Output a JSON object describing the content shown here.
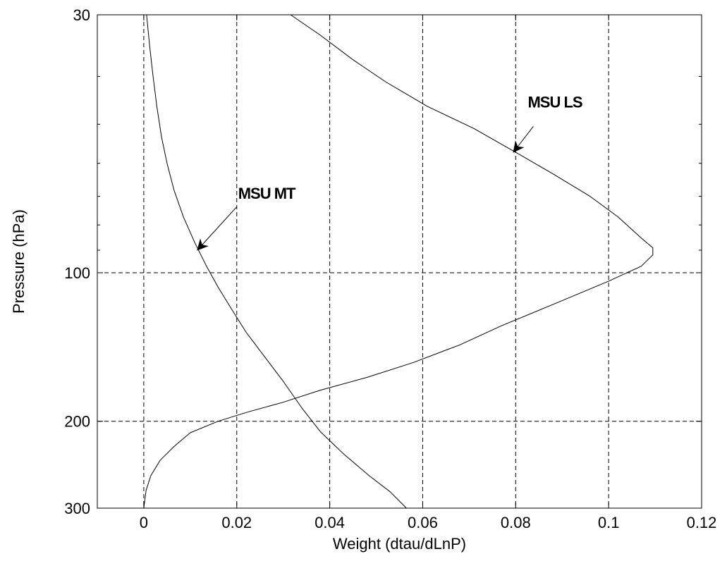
{
  "chart_data": {
    "type": "line",
    "xlabel": "Weight (dtau/dLnP)",
    "ylabel": "Pressure (hPa)",
    "xlim": [
      -0.01,
      0.12
    ],
    "ylim": [
      30,
      300
    ],
    "y_scale": "log",
    "y_inverted": true,
    "grid": true,
    "x_ticks": [
      0,
      0.02,
      0.04,
      0.06,
      0.08,
      0.1,
      0.12
    ],
    "x_tick_labels": [
      "0",
      "0.02",
      "0.04",
      "0.06",
      "0.08",
      "0.1",
      "0.12"
    ],
    "y_ticks": [
      30,
      100,
      200,
      300
    ],
    "y_tick_labels": [
      "30",
      "100",
      "200",
      "300"
    ],
    "series": [
      {
        "name": "MSU LS",
        "x": [
          0.0316,
          0.038,
          0.045,
          0.052,
          0.061,
          0.071,
          0.08,
          0.088,
          0.096,
          0.102,
          0.107,
          0.1095,
          0.1095,
          0.107,
          0.1,
          0.088,
          0.077,
          0.068,
          0.058,
          0.048,
          0.038,
          0.03,
          0.022,
          0.016,
          0.01,
          0.0065,
          0.0035,
          0.0015,
          0.0005,
          0
        ],
        "y": [
          30,
          33,
          37,
          41,
          46,
          51,
          57,
          63,
          70,
          77,
          85,
          89,
          92,
          97,
          104,
          116,
          128,
          140,
          152,
          163,
          173,
          183,
          192,
          200,
          211,
          225,
          240,
          258,
          276,
          300
        ]
      },
      {
        "name": "MSU MT",
        "x": [
          0.0006,
          0.0013,
          0.002,
          0.0028,
          0.0038,
          0.005,
          0.0065,
          0.0085,
          0.011,
          0.0135,
          0.016,
          0.019,
          0.022,
          0.026,
          0.03,
          0.034,
          0.038,
          0.043,
          0.0485,
          0.053,
          0.0565
        ],
        "y": [
          30,
          35,
          40,
          46,
          53,
          60,
          68,
          77,
          87,
          97,
          107,
          119,
          132,
          148,
          166,
          188,
          210,
          233,
          258,
          278,
          300
        ]
      }
    ],
    "annotations": [
      {
        "text": "MSU LS",
        "points_to": {
          "x": 0.0795,
          "y": 57
        }
      },
      {
        "text": "MSU MT",
        "points_to": {
          "x": 0.0115,
          "y": 90
        }
      }
    ]
  }
}
